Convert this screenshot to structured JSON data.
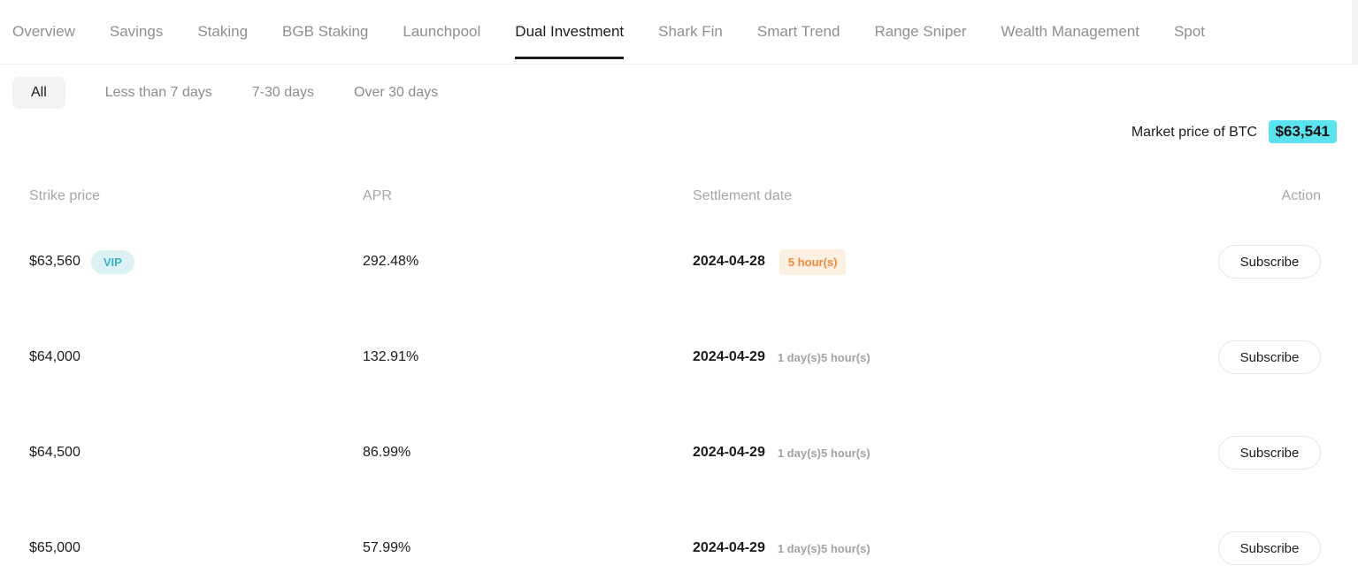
{
  "nav": {
    "tabs": [
      {
        "label": "Overview",
        "active": false
      },
      {
        "label": "Savings",
        "active": false
      },
      {
        "label": "Staking",
        "active": false
      },
      {
        "label": "BGB Staking",
        "active": false
      },
      {
        "label": "Launchpool",
        "active": false
      },
      {
        "label": "Dual Investment",
        "active": true
      },
      {
        "label": "Shark Fin",
        "active": false
      },
      {
        "label": "Smart Trend",
        "active": false
      },
      {
        "label": "Range Sniper",
        "active": false
      },
      {
        "label": "Wealth Management",
        "active": false
      },
      {
        "label": "Spot",
        "active": false
      }
    ]
  },
  "filters": {
    "items": [
      {
        "label": "All",
        "active": true
      },
      {
        "label": "Less than 7 days",
        "active": false
      },
      {
        "label": "7-30 days",
        "active": false
      },
      {
        "label": "Over 30 days",
        "active": false
      }
    ]
  },
  "market": {
    "label": "Market price of BTC",
    "price": "$63,541"
  },
  "table": {
    "headers": {
      "strike": "Strike price",
      "apr": "APR",
      "settlement": "Settlement date",
      "action": "Action"
    },
    "rows": [
      {
        "strike": "$63,560",
        "vip": "VIP",
        "apr": "292.48%",
        "date": "2024-04-28",
        "time_left": "5 hour(s)",
        "action": "Subscribe"
      },
      {
        "strike": "$64,000",
        "apr": "132.91%",
        "date": "2024-04-29",
        "time_left": "1 day(s)5 hour(s)",
        "action": "Subscribe"
      },
      {
        "strike": "$64,500",
        "apr": "86.99%",
        "date": "2024-04-29",
        "time_left": "1 day(s)5 hour(s)",
        "action": "Subscribe"
      },
      {
        "strike": "$65,000",
        "apr": "57.99%",
        "date": "2024-04-29",
        "time_left": "1 day(s)5 hour(s)",
        "action": "Subscribe"
      }
    ]
  },
  "colors": {
    "price_highlight": "#5be2ef",
    "vip_bg": "#dbf1f4",
    "vip_text": "#38b2c4",
    "time_badge_bg": "#fdf0e2",
    "time_badge_text": "#f08a3e",
    "active_tab": "#1b1b1b",
    "muted_text": "#8f8f8f"
  }
}
